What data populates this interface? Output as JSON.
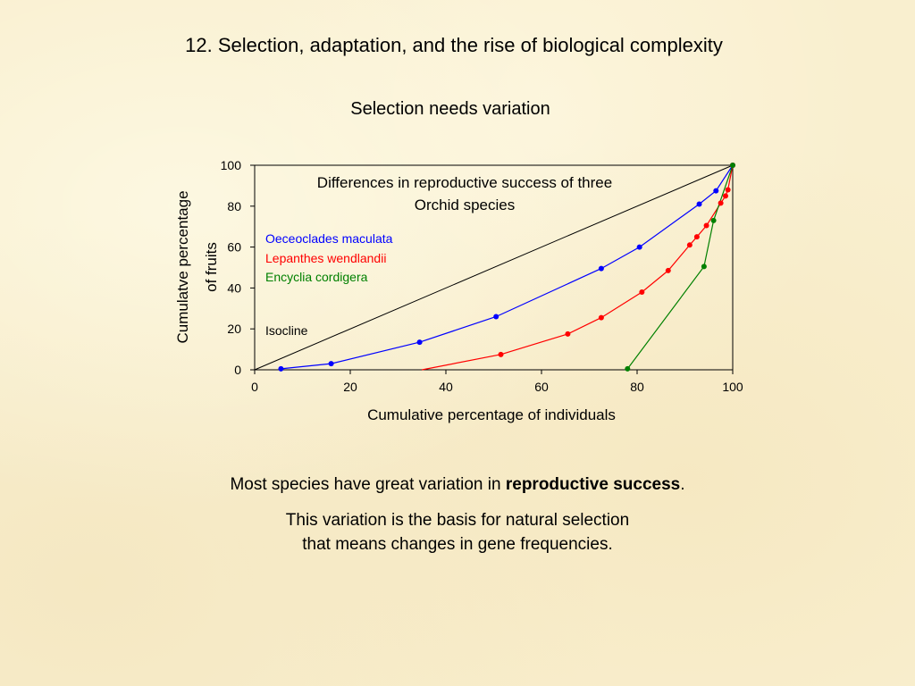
{
  "slide": {
    "title": "12. Selection, adaptation, and the rise of biological complexity",
    "subtitle": "Selection needs variation",
    "paragraph1": {
      "before": "Most species have great variation in ",
      "bold": "reproductive success",
      "after": "."
    },
    "paragraph2": {
      "line1": "This variation is the basis for natural selection",
      "line2": "that means changes in gene frequencies."
    }
  },
  "chart_data": {
    "type": "line",
    "title": "Differences in reproductive success of three Orchid species",
    "title_lines": [
      "Differences in reproductive success of three",
      "Orchid species"
    ],
    "xlabel": "Cumulative percentage of individuals",
    "ylabel_lines": [
      "Cumulatve percentage",
      "of fruits"
    ],
    "xlim": [
      0,
      100
    ],
    "ylim": [
      0,
      100
    ],
    "xticks": [
      0,
      20,
      40,
      60,
      80,
      100
    ],
    "yticks": [
      0,
      20,
      40,
      60,
      80,
      100
    ],
    "grid": false,
    "legend_placement": "top-left inside",
    "series": [
      {
        "name": "Oeceoclades maculata",
        "color": "#0000ff",
        "markers": true,
        "x": [
          5.5,
          16,
          34.5,
          50.5,
          72.5,
          80.5,
          93,
          96.5,
          100
        ],
        "y": [
          0.5,
          3,
          13.5,
          26,
          49.5,
          60,
          81,
          87.5,
          100
        ]
      },
      {
        "name": "Lepanthes wendlandii",
        "color": "#ff0000",
        "markers": true,
        "x": [
          51.5,
          65.5,
          72.5,
          81,
          86.5,
          91,
          92.5,
          94.5,
          97.5,
          98.5,
          99,
          100
        ],
        "y": [
          7.5,
          17.5,
          25.5,
          38,
          48.5,
          61,
          65,
          70.5,
          81.5,
          85,
          88,
          100
        ]
      },
      {
        "name": "Encyclia cordigera",
        "color": "#008000",
        "markers": true,
        "x": [
          78,
          94,
          96,
          100
        ],
        "y": [
          0.5,
          50.5,
          73,
          100
        ]
      }
    ],
    "annotations": {
      "isocline_label": "Isocline"
    },
    "isocline": {
      "x": [
        0,
        100
      ],
      "y": [
        0,
        100
      ],
      "color": "#000000"
    },
    "red_leading_segment": {
      "x": [
        35,
        51.5
      ],
      "y": [
        0,
        7.5
      ]
    }
  }
}
